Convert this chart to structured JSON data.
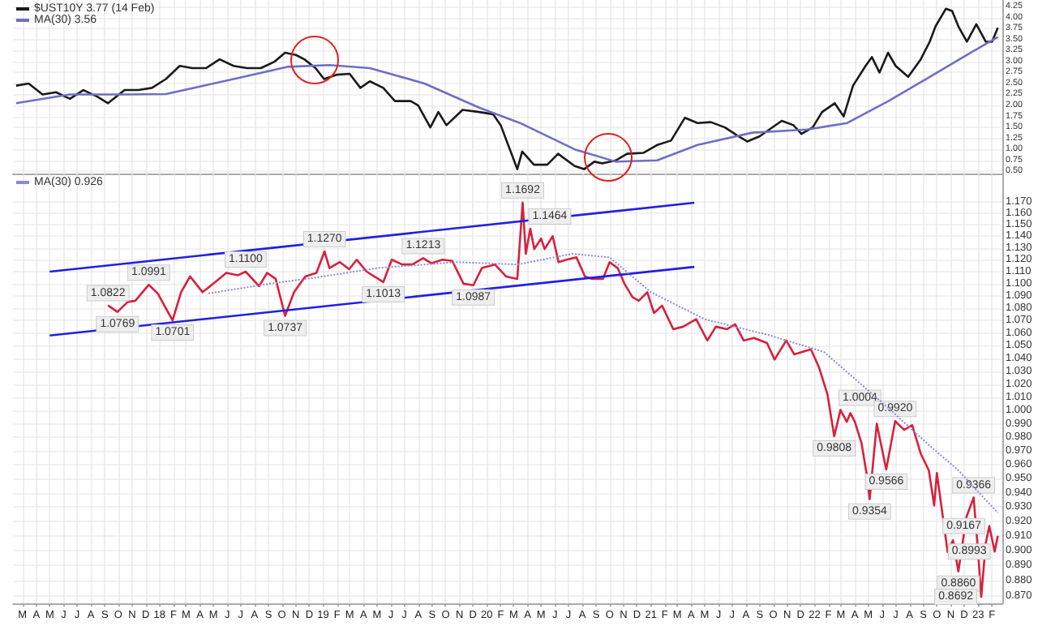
{
  "chart_data": [
    {
      "type": "line",
      "legend": "top left",
      "grid": true,
      "marker": "none",
      "tick_labels": "y",
      "xlim": [
        "2017-02-08",
        "2023-02-24"
      ],
      "ylim": [
        0.45,
        4.4
      ],
      "xticks": [
        {
          "value": "2017-03-01",
          "label": null
        },
        {
          "value": "2017-04-01",
          "label": null
        },
        {
          "value": "2017-05-01",
          "label": null
        },
        {
          "value": "2017-06-01",
          "label": null
        },
        {
          "value": "2017-07-01",
          "label": null
        },
        {
          "value": "2017-08-01",
          "label": null
        },
        {
          "value": "2017-09-01",
          "label": null
        },
        {
          "value": "2017-10-01",
          "label": null
        },
        {
          "value": "2017-11-01",
          "label": null
        },
        {
          "value": "2017-12-01",
          "label": null
        },
        {
          "value": "2018-01-01",
          "label": null
        },
        {
          "value": "2018-02-01",
          "label": null
        },
        {
          "value": "2018-03-01",
          "label": null
        },
        {
          "value": "2018-04-01",
          "label": null
        },
        {
          "value": "2018-05-01",
          "label": null
        },
        {
          "value": "2018-06-01",
          "label": null
        },
        {
          "value": "2018-07-01",
          "label": null
        },
        {
          "value": "2018-08-01",
          "label": null
        },
        {
          "value": "2018-09-01",
          "label": null
        },
        {
          "value": "2018-10-01",
          "label": null
        },
        {
          "value": "2018-11-01",
          "label": null
        },
        {
          "value": "2018-12-01",
          "label": null
        },
        {
          "value": "2019-01-01",
          "label": null
        },
        {
          "value": "2019-02-01",
          "label": null
        },
        {
          "value": "2019-03-01",
          "label": null
        },
        {
          "value": "2019-04-01",
          "label": null
        },
        {
          "value": "2019-05-01",
          "label": null
        },
        {
          "value": "2019-06-01",
          "label": null
        },
        {
          "value": "2019-07-01",
          "label": null
        },
        {
          "value": "2019-08-01",
          "label": null
        },
        {
          "value": "2019-09-01",
          "label": null
        },
        {
          "value": "2019-10-01",
          "label": null
        },
        {
          "value": "2019-11-01",
          "label": null
        },
        {
          "value": "2019-12-01",
          "label": null
        },
        {
          "value": "2020-01-01",
          "label": null
        },
        {
          "value": "2020-02-01",
          "label": null
        },
        {
          "value": "2020-03-01",
          "label": null
        },
        {
          "value": "2020-04-01",
          "label": null
        },
        {
          "value": "2020-05-01",
          "label": null
        },
        {
          "value": "2020-06-01",
          "label": null
        },
        {
          "value": "2020-07-01",
          "label": null
        },
        {
          "value": "2020-08-01",
          "label": null
        },
        {
          "value": "2020-09-01",
          "label": null
        },
        {
          "value": "2020-10-01",
          "label": null
        },
        {
          "value": "2020-11-01",
          "label": null
        },
        {
          "value": "2020-12-01",
          "label": null
        },
        {
          "value": "2021-01-01",
          "label": null
        },
        {
          "value": "2021-02-01",
          "label": null
        },
        {
          "value": "2021-03-01",
          "label": null
        },
        {
          "value": "2021-04-01",
          "label": null
        },
        {
          "value": "2021-05-01",
          "label": null
        },
        {
          "value": "2021-06-01",
          "label": null
        },
        {
          "value": "2021-07-01",
          "label": null
        },
        {
          "value": "2021-08-01",
          "label": null
        },
        {
          "value": "2021-09-01",
          "label": null
        },
        {
          "value": "2021-10-01",
          "label": null
        },
        {
          "value": "2021-11-01",
          "label": null
        },
        {
          "value": "2021-12-01",
          "label": null
        },
        {
          "value": "2022-01-01",
          "label": null
        },
        {
          "value": "2022-02-01",
          "label": null
        },
        {
          "value": "2022-03-01",
          "label": null
        },
        {
          "value": "2022-04-01",
          "label": null
        },
        {
          "value": "2022-05-01",
          "label": null
        },
        {
          "value": "2022-06-01",
          "label": null
        },
        {
          "value": "2022-07-01",
          "label": null
        },
        {
          "value": "2022-08-01",
          "label": null
        },
        {
          "value": "2022-09-01",
          "label": null
        },
        {
          "value": "2022-10-01",
          "label": null
        },
        {
          "value": "2022-11-01",
          "label": null
        },
        {
          "value": "2022-12-01",
          "label": null
        },
        {
          "value": "2023-01-01",
          "label": null
        },
        {
          "value": "2023-02-01",
          "label": null
        }
      ],
      "yticks": [
        {
          "value": 0.5,
          "label": "0.50"
        },
        {
          "value": 0.75,
          "label": "0.75"
        },
        {
          "value": 1,
          "label": "1.00"
        },
        {
          "value": 1.25,
          "label": "1.25"
        },
        {
          "value": 1.5,
          "label": "1.50"
        },
        {
          "value": 1.75,
          "label": "1.75"
        },
        {
          "value": 2,
          "label": "2.00"
        },
        {
          "value": 2.25,
          "label": "2.25"
        },
        {
          "value": 2.5,
          "label": "2.50"
        },
        {
          "value": 2.75,
          "label": "2.75"
        },
        {
          "value": 3,
          "label": "3.00"
        },
        {
          "value": 3.25,
          "label": "3.25"
        },
        {
          "value": 3.5,
          "label": "3.50"
        },
        {
          "value": 3.75,
          "label": "3.75"
        },
        {
          "value": 4,
          "label": "4.00"
        },
        {
          "value": 4.25,
          "label": "4.25"
        }
      ],
      "series": [
        {
          "name": "$UST10Y 3.77 (14 Feb)",
          "color": "#1a1a1a",
          "x": [
            "2017-02-15",
            "2017-03-15",
            "2017-04-15",
            "2017-05-15",
            "2017-06-15",
            "2017-07-15",
            "2017-08-15",
            "2017-09-08",
            "2017-10-15",
            "2017-11-15",
            "2017-12-15",
            "2018-01-15",
            "2018-02-15",
            "2018-03-15",
            "2018-04-15",
            "2018-05-15",
            "2018-06-15",
            "2018-07-15",
            "2018-08-15",
            "2018-09-15",
            "2018-10-08",
            "2018-11-01",
            "2018-11-20",
            "2018-12-15",
            "2019-01-03",
            "2019-02-01",
            "2019-03-01",
            "2019-03-25",
            "2019-04-15",
            "2019-05-15",
            "2019-06-10",
            "2019-07-15",
            "2019-08-01",
            "2019-08-28",
            "2019-09-15",
            "2019-10-03",
            "2019-11-08",
            "2019-12-15",
            "2020-01-15",
            "2020-02-01",
            "2020-03-09",
            "2020-03-20",
            "2020-04-15",
            "2020-05-15",
            "2020-06-08",
            "2020-07-15",
            "2020-08-05",
            "2020-08-28",
            "2020-09-15",
            "2020-10-15",
            "2020-11-09",
            "2020-12-15",
            "2021-01-15",
            "2021-02-15",
            "2021-03-18",
            "2021-04-15",
            "2021-05-15",
            "2021-06-15",
            "2021-07-15",
            "2021-08-04",
            "2021-09-01",
            "2021-10-20",
            "2021-11-15",
            "2021-12-03",
            "2021-12-28",
            "2022-01-18",
            "2022-02-15",
            "2022-03-07",
            "2022-03-28",
            "2022-04-25",
            "2022-05-09",
            "2022-05-26",
            "2022-06-14",
            "2022-07-01",
            "2022-07-29",
            "2022-08-26",
            "2022-09-15",
            "2022-09-28",
            "2022-10-21",
            "2022-11-04",
            "2022-11-18",
            "2022-12-07",
            "2022-12-28",
            "2023-01-18",
            "2023-02-01",
            "2023-02-14"
          ],
          "values": [
            2.45,
            2.5,
            2.25,
            2.3,
            2.15,
            2.35,
            2.2,
            2.05,
            2.35,
            2.35,
            2.4,
            2.6,
            2.9,
            2.85,
            2.85,
            3.05,
            2.9,
            2.85,
            2.85,
            3.0,
            3.2,
            3.15,
            3.05,
            2.85,
            2.6,
            2.7,
            2.72,
            2.4,
            2.55,
            2.4,
            2.1,
            2.1,
            2.0,
            1.5,
            1.85,
            1.55,
            1.9,
            1.85,
            1.8,
            1.55,
            0.55,
            0.95,
            0.65,
            0.65,
            0.9,
            0.62,
            0.55,
            0.72,
            0.68,
            0.75,
            0.9,
            0.92,
            1.1,
            1.2,
            1.72,
            1.6,
            1.62,
            1.5,
            1.3,
            1.18,
            1.3,
            1.65,
            1.55,
            1.35,
            1.5,
            1.85,
            2.05,
            1.75,
            2.45,
            2.9,
            3.1,
            2.75,
            3.2,
            2.9,
            2.65,
            3.05,
            3.45,
            3.8,
            4.2,
            4.15,
            3.8,
            3.45,
            3.85,
            3.45,
            3.45,
            3.77
          ]
        },
        {
          "name": "MA(30) 3.56",
          "color": "#6f6fc4",
          "x": [
            "2017-02-15",
            "2017-06-15",
            "2017-10-15",
            "2018-01-15",
            "2018-06-15",
            "2018-10-15",
            "2019-01-15",
            "2019-04-15",
            "2019-08-15",
            "2019-12-15",
            "2020-03-15",
            "2020-07-15",
            "2020-10-15",
            "2021-01-15",
            "2021-04-15",
            "2021-08-15",
            "2021-12-15",
            "2022-03-15",
            "2022-06-15",
            "2022-09-15",
            "2022-12-15",
            "2023-02-14"
          ],
          "values": [
            2.05,
            2.25,
            2.25,
            2.26,
            2.6,
            2.88,
            2.92,
            2.85,
            2.5,
            1.95,
            1.6,
            1.0,
            0.72,
            0.75,
            1.1,
            1.38,
            1.45,
            1.6,
            2.1,
            2.65,
            3.2,
            3.56
          ]
        }
      ]
    },
    {
      "type": "line",
      "legend": "top left",
      "grid": true,
      "marker": "none",
      "log": "y",
      "xlim": [
        "2017-02-08",
        "2023-02-24"
      ],
      "ylim": [
        0.865,
        1.195
      ],
      "xticks": [
        {
          "value": "2017-03-01",
          "label": "M"
        },
        {
          "value": "2017-04-01",
          "label": "A"
        },
        {
          "value": "2017-05-01",
          "label": "M"
        },
        {
          "value": "2017-06-01",
          "label": "J"
        },
        {
          "value": "2017-07-01",
          "label": "J"
        },
        {
          "value": "2017-08-01",
          "label": "A"
        },
        {
          "value": "2017-09-01",
          "label": "S"
        },
        {
          "value": "2017-10-01",
          "label": "O"
        },
        {
          "value": "2017-11-01",
          "label": "N"
        },
        {
          "value": "2017-12-01",
          "label": "D"
        },
        {
          "value": "2018-01-01",
          "label": "18"
        },
        {
          "value": "2018-02-01",
          "label": "F"
        },
        {
          "value": "2018-03-01",
          "label": "M"
        },
        {
          "value": "2018-04-01",
          "label": "A"
        },
        {
          "value": "2018-05-01",
          "label": "M"
        },
        {
          "value": "2018-06-01",
          "label": "J"
        },
        {
          "value": "2018-07-01",
          "label": "J"
        },
        {
          "value": "2018-08-01",
          "label": "A"
        },
        {
          "value": "2018-09-01",
          "label": "S"
        },
        {
          "value": "2018-10-01",
          "label": "O"
        },
        {
          "value": "2018-11-01",
          "label": "N"
        },
        {
          "value": "2018-12-01",
          "label": "D"
        },
        {
          "value": "2019-01-01",
          "label": "19"
        },
        {
          "value": "2019-02-01",
          "label": "F"
        },
        {
          "value": "2019-03-01",
          "label": "M"
        },
        {
          "value": "2019-04-01",
          "label": "A"
        },
        {
          "value": "2019-05-01",
          "label": "M"
        },
        {
          "value": "2019-06-01",
          "label": "J"
        },
        {
          "value": "2019-07-01",
          "label": "J"
        },
        {
          "value": "2019-08-01",
          "label": "A"
        },
        {
          "value": "2019-09-01",
          "label": "S"
        },
        {
          "value": "2019-10-01",
          "label": "O"
        },
        {
          "value": "2019-11-01",
          "label": "N"
        },
        {
          "value": "2019-12-01",
          "label": "D"
        },
        {
          "value": "2020-01-01",
          "label": "20"
        },
        {
          "value": "2020-02-01",
          "label": "F"
        },
        {
          "value": "2020-03-01",
          "label": "M"
        },
        {
          "value": "2020-04-01",
          "label": "A"
        },
        {
          "value": "2020-05-01",
          "label": "M"
        },
        {
          "value": "2020-06-01",
          "label": "J"
        },
        {
          "value": "2020-07-01",
          "label": "J"
        },
        {
          "value": "2020-08-01",
          "label": "A"
        },
        {
          "value": "2020-09-01",
          "label": "S"
        },
        {
          "value": "2020-10-01",
          "label": "O"
        },
        {
          "value": "2020-11-01",
          "label": "N"
        },
        {
          "value": "2020-12-01",
          "label": "D"
        },
        {
          "value": "2021-01-01",
          "label": "21"
        },
        {
          "value": "2021-02-01",
          "label": "F"
        },
        {
          "value": "2021-03-01",
          "label": "M"
        },
        {
          "value": "2021-04-01",
          "label": "A"
        },
        {
          "value": "2021-05-01",
          "label": "M"
        },
        {
          "value": "2021-06-01",
          "label": "J"
        },
        {
          "value": "2021-07-01",
          "label": "J"
        },
        {
          "value": "2021-08-01",
          "label": "A"
        },
        {
          "value": "2021-09-01",
          "label": "S"
        },
        {
          "value": "2021-10-01",
          "label": "O"
        },
        {
          "value": "2021-11-01",
          "label": "N"
        },
        {
          "value": "2021-12-01",
          "label": "D"
        },
        {
          "value": "2022-01-01",
          "label": "22"
        },
        {
          "value": "2022-02-01",
          "label": "F"
        },
        {
          "value": "2022-03-01",
          "label": "M"
        },
        {
          "value": "2022-04-01",
          "label": "A"
        },
        {
          "value": "2022-05-01",
          "label": "M"
        },
        {
          "value": "2022-06-01",
          "label": "J"
        },
        {
          "value": "2022-07-01",
          "label": "J"
        },
        {
          "value": "2022-08-01",
          "label": "A"
        },
        {
          "value": "2022-09-01",
          "label": "S"
        },
        {
          "value": "2022-10-01",
          "label": "O"
        },
        {
          "value": "2022-11-01",
          "label": "N"
        },
        {
          "value": "2022-12-01",
          "label": "D"
        },
        {
          "value": "2023-01-01",
          "label": "23"
        },
        {
          "value": "2023-02-01",
          "label": "F"
        }
      ],
      "yticks": [
        {
          "value": 0.87,
          "label": "0.870"
        },
        {
          "value": 0.88,
          "label": "0.880"
        },
        {
          "value": 0.89,
          "label": "0.890"
        },
        {
          "value": 0.9,
          "label": "0.900"
        },
        {
          "value": 0.91,
          "label": "0.910"
        },
        {
          "value": 0.92,
          "label": "0.920"
        },
        {
          "value": 0.93,
          "label": "0.930"
        },
        {
          "value": 0.94,
          "label": "0.940"
        },
        {
          "value": 0.95,
          "label": "0.950"
        },
        {
          "value": 0.96,
          "label": "0.960"
        },
        {
          "value": 0.97,
          "label": "0.970"
        },
        {
          "value": 0.98,
          "label": "0.980"
        },
        {
          "value": 0.99,
          "label": "0.990"
        },
        {
          "value": 1,
          "label": "1.000"
        },
        {
          "value": 1.01,
          "label": "1.010"
        },
        {
          "value": 1.02,
          "label": "1.020"
        },
        {
          "value": 1.03,
          "label": "1.030"
        },
        {
          "value": 1.04,
          "label": "1.040"
        },
        {
          "value": 1.05,
          "label": "1.050"
        },
        {
          "value": 1.06,
          "label": "1.060"
        },
        {
          "value": 1.07,
          "label": "1.070"
        },
        {
          "value": 1.08,
          "label": "1.080"
        },
        {
          "value": 1.09,
          "label": "1.090"
        },
        {
          "value": 1.1,
          "label": "1.100"
        },
        {
          "value": 1.11,
          "label": "1.110"
        },
        {
          "value": 1.12,
          "label": "1.120"
        },
        {
          "value": 1.13,
          "label": "1.130"
        },
        {
          "value": 1.14,
          "label": "1.140"
        },
        {
          "value": 1.15,
          "label": "1.150"
        },
        {
          "value": 1.16,
          "label": "1.160"
        },
        {
          "value": 1.17,
          "label": "1.170"
        }
      ],
      "series": [
        {
          "color": "#d8203c",
          "x": [
            "2017-09-08",
            "2017-09-29",
            "2017-10-22",
            "2017-11-08",
            "2017-12-08",
            "2017-12-28",
            "2018-01-30",
            "2018-02-18",
            "2018-03-10",
            "2018-04-07",
            "2018-05-01",
            "2018-05-30",
            "2018-06-25",
            "2018-07-12",
            "2018-08-11",
            "2018-08-29",
            "2018-09-17",
            "2018-10-08",
            "2018-10-28",
            "2018-11-22",
            "2018-12-17",
            "2019-01-04",
            "2019-01-15",
            "2019-02-07",
            "2019-02-28",
            "2019-03-17",
            "2019-04-08",
            "2019-05-15",
            "2019-06-03",
            "2019-06-26",
            "2019-07-19",
            "2019-08-12",
            "2019-08-30",
            "2019-09-24",
            "2019-10-16",
            "2019-11-10",
            "2019-12-02",
            "2019-12-21",
            "2020-01-19",
            "2020-02-13",
            "2020-03-09",
            "2020-03-21",
            "2020-03-28",
            "2020-04-07",
            "2020-04-16",
            "2020-05-01",
            "2020-05-09",
            "2020-05-27",
            "2020-06-09",
            "2020-06-27",
            "2020-07-19",
            "2020-08-07",
            "2020-08-23",
            "2020-09-16",
            "2020-10-01",
            "2020-10-19",
            "2020-11-03",
            "2020-11-21",
            "2020-12-05",
            "2020-12-24",
            "2021-01-08",
            "2021-01-26",
            "2021-02-20",
            "2021-03-14",
            "2021-04-12",
            "2021-05-07",
            "2021-05-26",
            "2021-06-20",
            "2021-07-08",
            "2021-07-27",
            "2021-08-19",
            "2021-09-17",
            "2021-10-04",
            "2021-10-30",
            "2021-11-17",
            "2021-12-24",
            "2022-01-11",
            "2022-01-30",
            "2022-02-14",
            "2022-02-28",
            "2022-03-14",
            "2022-03-22",
            "2022-04-01",
            "2022-04-16",
            "2022-04-28",
            "2022-05-04",
            "2022-05-20",
            "2022-06-10",
            "2022-06-30",
            "2022-07-20",
            "2022-08-07",
            "2022-08-26",
            "2022-09-13",
            "2022-09-25",
            "2022-10-01",
            "2022-10-25",
            "2022-11-06",
            "2022-11-18",
            "2022-12-06",
            "2022-12-22",
            "2022-12-31",
            "2023-01-08",
            "2023-01-18",
            "2023-01-26",
            "2023-02-07",
            "2023-02-14"
          ],
          "values": [
            1.0822,
            1.0769,
            1.085,
            1.086,
            1.0991,
            1.092,
            1.0701,
            1.093,
            1.106,
            1.093,
            1.1,
            1.109,
            1.107,
            1.11,
            1.098,
            1.109,
            1.104,
            1.0737,
            1.093,
            1.106,
            1.109,
            1.127,
            1.113,
            1.118,
            1.112,
            1.12,
            1.11,
            1.1013,
            1.12,
            1.116,
            1.116,
            1.1213,
            1.117,
            1.12,
            1.119,
            1.1,
            1.0987,
            1.113,
            1.116,
            1.106,
            1.104,
            1.1692,
            1.125,
            1.1464,
            1.129,
            1.138,
            1.129,
            1.14,
            1.118,
            1.12,
            1.122,
            1.106,
            1.104,
            1.104,
            1.118,
            1.113,
            1.1,
            1.089,
            1.086,
            1.093,
            1.076,
            1.082,
            1.063,
            1.065,
            1.071,
            1.054,
            1.065,
            1.063,
            1.067,
            1.054,
            1.056,
            1.052,
            1.039,
            1.054,
            1.043,
            1.047,
            1.033,
            1.012,
            0.9808,
            1.0004,
            0.9915,
            0.998,
            0.9915,
            0.9756,
            0.952,
            0.9354,
            0.99,
            0.9566,
            0.992,
            0.9855,
            0.989,
            0.968,
            0.956,
            0.931,
            0.954,
            0.899,
            0.907,
            0.886,
            0.923,
            0.9366,
            0.903,
            0.8692,
            0.905,
            0.9167,
            0.8993,
            0.91
          ],
          "value_labels": [
            "1.0822",
            "1.0769",
            null,
            null,
            "1.0991",
            null,
            "1.0701",
            null,
            null,
            null,
            null,
            null,
            null,
            "1.1100",
            null,
            null,
            null,
            "1.0737",
            null,
            null,
            null,
            "1.1270",
            null,
            null,
            null,
            null,
            null,
            "1.1013",
            null,
            null,
            null,
            "1.1213",
            null,
            null,
            null,
            null,
            "1.0987",
            null,
            null,
            null,
            null,
            "1.1692",
            null,
            "1.1464",
            null,
            null,
            null,
            null,
            null,
            null,
            null,
            null,
            null,
            null,
            null,
            null,
            null,
            null,
            null,
            null,
            null,
            null,
            null,
            null,
            null,
            null,
            null,
            null,
            null,
            null,
            null,
            null,
            null,
            null,
            null,
            null,
            null,
            null,
            "0.9808",
            "1.0004",
            null,
            null,
            null,
            null,
            null,
            "0.9354",
            null,
            "0.9566",
            "0.9920",
            null,
            null,
            null,
            null,
            null,
            null,
            null,
            null,
            "0.8860",
            null,
            "0.9366",
            null,
            "0.8692",
            null,
            "0.9167",
            "0.8993",
            null
          ]
        },
        {
          "name": "MA(30) 0.926",
          "color": "#8a8ad8",
          "line_style": "dotted",
          "x": [
            "2018-04-20",
            "2018-09-05",
            "2019-01-01",
            "2019-05-01",
            "2019-10-27",
            "2020-03-10",
            "2020-07-10",
            "2020-10-01",
            "2021-01-01",
            "2021-05-01",
            "2021-09-24",
            "2022-01-22",
            "2022-04-28",
            "2022-06-14",
            "2022-09-16",
            "2022-11-18",
            "2022-12-22",
            "2023-02-14"
          ],
          "values": [
            1.092,
            1.1,
            1.106,
            1.113,
            1.118,
            1.116,
            1.125,
            1.122,
            1.093,
            1.071,
            1.058,
            1.045,
            1.016,
            1.002,
            0.9735,
            0.956,
            0.944,
            0.926
          ]
        },
        {
          "color": "#2020e0",
          "x": [
            "2017-05-01",
            "2021-04-08"
          ],
          "values": [
            1.11,
            1.169
          ]
        },
        {
          "color": "#2020e0",
          "x": [
            "2017-05-01",
            "2021-04-08"
          ],
          "values": [
            1.058,
            1.114
          ]
        }
      ]
    }
  ]
}
